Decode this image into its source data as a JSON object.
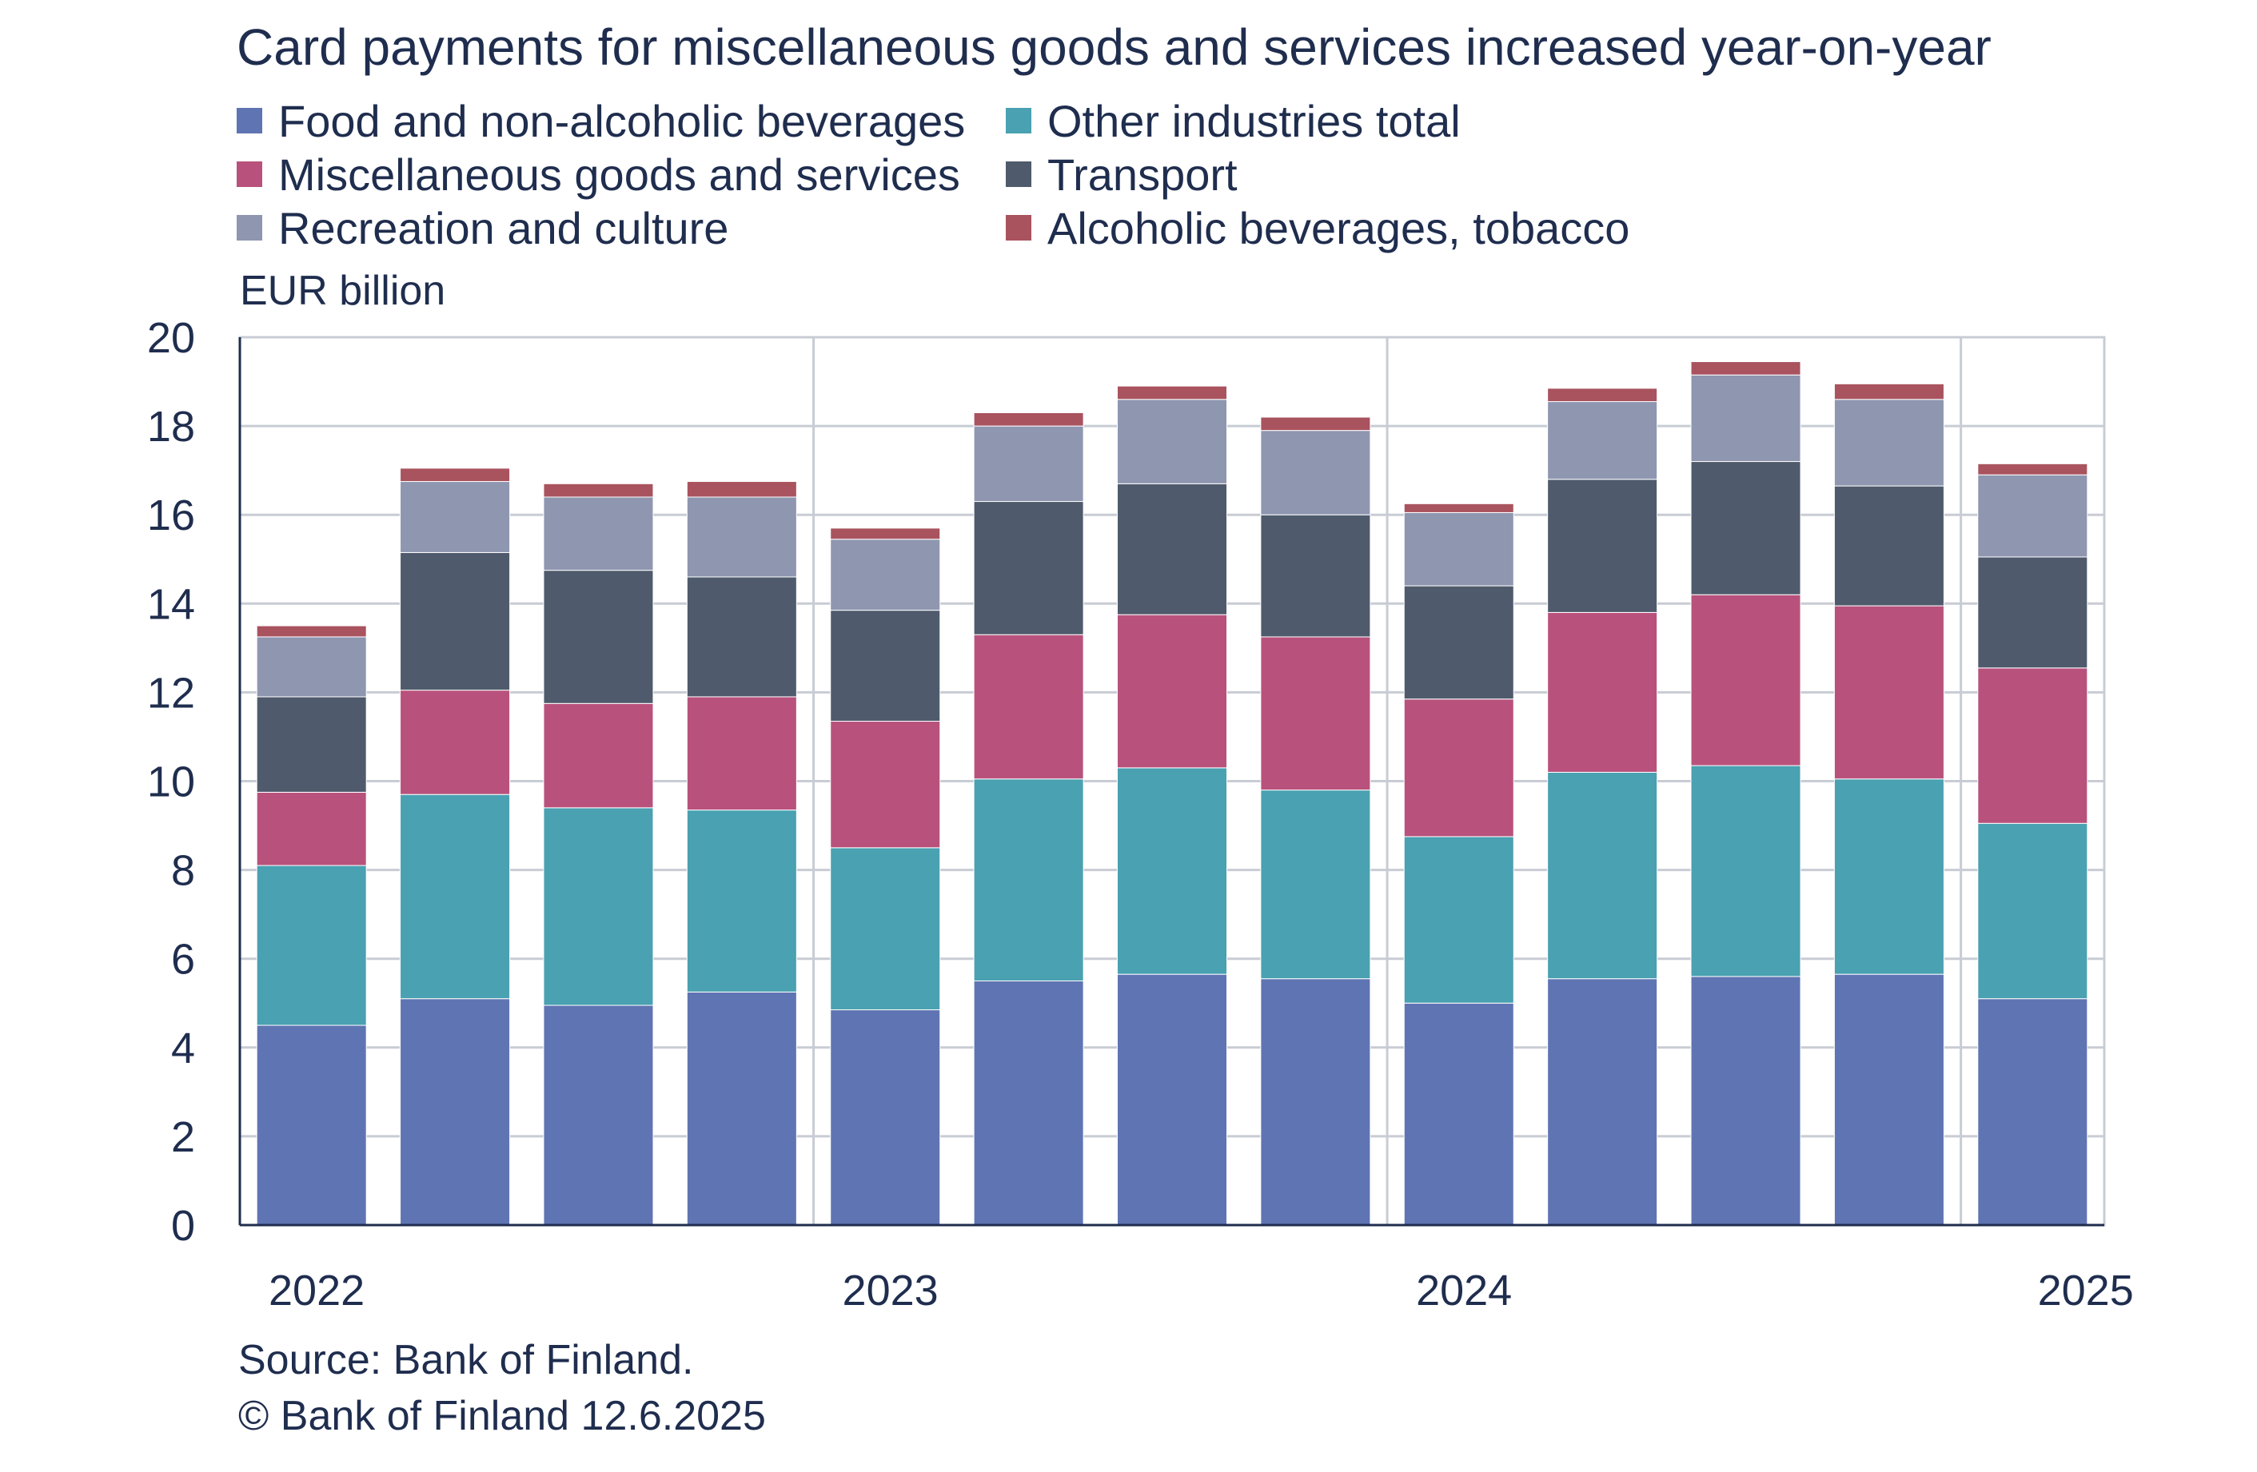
{
  "chart_data": {
    "type": "bar",
    "stacked": true,
    "title": "Card payments for miscellaneous goods and services increased year-on-year",
    "ylabel": "EUR billion",
    "ylim": [
      0,
      20
    ],
    "yticks": [
      0,
      2,
      4,
      6,
      8,
      10,
      12,
      14,
      16,
      18,
      20
    ],
    "categories": [
      "2022 Q1",
      "2022 Q2",
      "2022 Q3",
      "2022 Q4",
      "2023 Q1",
      "2023 Q2",
      "2023 Q3",
      "2023 Q4",
      "2024 Q1",
      "2024 Q2",
      "2024 Q3",
      "2024 Q4",
      "2025 Q1"
    ],
    "year_labels": [
      {
        "label": "2022",
        "start_index": 0
      },
      {
        "label": "2023",
        "start_index": 4
      },
      {
        "label": "2024",
        "start_index": 8
      },
      {
        "label": "2025",
        "start_index": 12
      }
    ],
    "series": [
      {
        "name": "Food and non-alcoholic beverages",
        "color": "#5f74b2",
        "values": [
          4.5,
          5.1,
          4.95,
          5.25,
          4.85,
          5.5,
          5.65,
          5.55,
          5.0,
          5.55,
          5.6,
          5.65,
          5.1
        ]
      },
      {
        "name": "Other industries total",
        "color": "#49a1b1",
        "values": [
          3.6,
          4.6,
          4.45,
          4.1,
          3.65,
          4.55,
          4.65,
          4.25,
          3.75,
          4.65,
          4.75,
          4.4,
          3.95
        ]
      },
      {
        "name": "Miscellaneous goods and services",
        "color": "#b8527c",
        "values": [
          1.65,
          2.35,
          2.35,
          2.55,
          2.85,
          3.25,
          3.45,
          3.45,
          3.1,
          3.6,
          3.85,
          3.9,
          3.5
        ]
      },
      {
        "name": "Transport",
        "color": "#4f5b6c",
        "values": [
          2.15,
          3.1,
          3.0,
          2.7,
          2.5,
          3.0,
          2.95,
          2.75,
          2.55,
          3.0,
          3.0,
          2.7,
          2.5
        ]
      },
      {
        "name": "Recreation and culture",
        "color": "#8e96b0",
        "values": [
          1.35,
          1.6,
          1.65,
          1.8,
          1.6,
          1.7,
          1.9,
          1.9,
          1.65,
          1.75,
          1.95,
          1.95,
          1.85
        ]
      },
      {
        "name": "Alcoholic beverages, tobacco",
        "color": "#a9535e",
        "values": [
          0.25,
          0.3,
          0.3,
          0.35,
          0.25,
          0.3,
          0.3,
          0.3,
          0.2,
          0.3,
          0.3,
          0.35,
          0.25
        ]
      }
    ],
    "legend": "top",
    "grid": "horizontal"
  },
  "source": "Source: Bank of Finland.",
  "copyright": "© Bank of Finland 12.6.2025"
}
